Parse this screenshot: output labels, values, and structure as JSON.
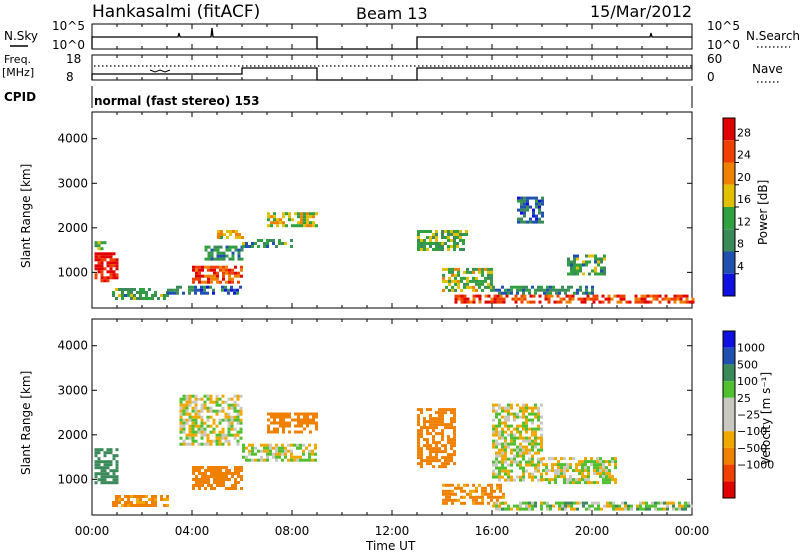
{
  "header": {
    "station": "Hankasalmi (fitACF)",
    "beam": "Beam 13",
    "date": "15/Mar/2012"
  },
  "top_panels": {
    "nsky_label": "N.Sky",
    "nsearch_label": "N.Search",
    "noise_ticks": [
      "10^5",
      "10^0"
    ],
    "freq_label": "Freq.",
    "freq_unit": "[MHz]",
    "freq_ticks": [
      "18",
      "8"
    ],
    "nave_label": "Nave",
    "nave_ticks": [
      "60",
      "0"
    ],
    "cpid_label": "CPID",
    "cpid_value": "normal (fast stereo) 153"
  },
  "colors": {
    "power_scale": [
      "#1010e0",
      "#2050b0",
      "#3a8a5a",
      "#30a040",
      "#e0c000",
      "#f08000",
      "#f04000",
      "#e00000"
    ],
    "velocity_scale": [
      "#e00000",
      "#f04000",
      "#f08000",
      "#f0a800",
      "#c8c8c0",
      "#c8c8c0",
      "#50c030",
      "#3a8a5a",
      "#2050b0",
      "#1010e0"
    ],
    "ground_scatter": "#c0c0b8"
  },
  "chart_data": [
    {
      "type": "heatmap",
      "name": "power",
      "ylabel": "Slant Range [km]",
      "ylim": [
        200,
        4600
      ],
      "yticks": [
        "4000",
        "3000",
        "2000",
        "1000"
      ],
      "colorbar_label": "Power [dB]",
      "colorbar_ticks": [
        "28",
        "24",
        "20",
        "16",
        "12",
        "8",
        "4"
      ],
      "colorbar_range": [
        0,
        32
      ],
      "xlim_hours": [
        0,
        24
      ],
      "data_gap_hours": [
        9,
        13
      ],
      "regions": [
        {
          "t0": 0.1,
          "t1": 1.0,
          "r0": 800,
          "r1": 1450,
          "value": 30
        },
        {
          "t0": 0.1,
          "t1": 0.5,
          "r0": 1450,
          "r1": 1700,
          "value": 14
        },
        {
          "t0": 0.8,
          "t1": 3.0,
          "r0": 400,
          "r1": 650,
          "value": 12
        },
        {
          "t0": 3.0,
          "t1": 6.0,
          "r0": 500,
          "r1": 700,
          "value": 8
        },
        {
          "t0": 4.0,
          "t1": 6.0,
          "r0": 800,
          "r1": 1150,
          "value": 26
        },
        {
          "t0": 4.5,
          "t1": 6.0,
          "r0": 1300,
          "r1": 1600,
          "value": 10
        },
        {
          "t0": 5.0,
          "t1": 6.0,
          "r0": 1750,
          "r1": 1950,
          "value": 20
        },
        {
          "t0": 6.0,
          "t1": 8.0,
          "r0": 1550,
          "r1": 1750,
          "value": 12
        },
        {
          "t0": 7.0,
          "t1": 9.0,
          "r0": 2050,
          "r1": 2350,
          "value": 18
        },
        {
          "t0": 13.0,
          "t1": 15.0,
          "r0": 1500,
          "r1": 1950,
          "value": 14
        },
        {
          "t0": 14.0,
          "t1": 16.0,
          "r0": 600,
          "r1": 1100,
          "value": 16
        },
        {
          "t0": 14.5,
          "t1": 24.0,
          "r0": 300,
          "r1": 500,
          "value": 26
        },
        {
          "t0": 16.0,
          "t1": 20.0,
          "r0": 500,
          "r1": 700,
          "value": 10
        },
        {
          "t0": 17.0,
          "t1": 18.0,
          "r0": 2100,
          "r1": 2700,
          "value": 8
        },
        {
          "t0": 19.0,
          "t1": 20.5,
          "r0": 950,
          "r1": 1400,
          "value": 12
        }
      ]
    },
    {
      "type": "heatmap",
      "name": "velocity",
      "ylabel": "Slant Range [km]",
      "ylim": [
        200,
        4600
      ],
      "yticks": [
        "4000",
        "3000",
        "2000",
        "1000"
      ],
      "colorbar_label": "Velocity [m s⁻¹]",
      "colorbar_ticks": [
        "1000",
        "500",
        "100",
        "25",
        "−25",
        "−100",
        "−500",
        "−1000"
      ],
      "xlim_hours": [
        0,
        24
      ],
      "data_gap_hours": [
        9,
        13
      ],
      "regions": [
        {
          "t0": 0.1,
          "t1": 1.0,
          "r0": 900,
          "r1": 1700,
          "value": 300
        },
        {
          "t0": 0.8,
          "t1": 3.0,
          "r0": 400,
          "r1": 650,
          "value": -150
        },
        {
          "t0": 4.0,
          "t1": 6.0,
          "r0": 800,
          "r1": 1300,
          "value": -200
        },
        {
          "t0": 3.5,
          "t1": 6.0,
          "r0": 1800,
          "r1": 2900,
          "value": 0
        },
        {
          "t0": 7.0,
          "t1": 9.0,
          "r0": 2050,
          "r1": 2500,
          "value": -400
        },
        {
          "t0": 6.0,
          "t1": 9.0,
          "r0": 1400,
          "r1": 1800,
          "value": 0
        },
        {
          "t0": 13.0,
          "t1": 14.5,
          "r0": 1300,
          "r1": 2600,
          "value": -300
        },
        {
          "t0": 14.0,
          "t1": 16.5,
          "r0": 450,
          "r1": 900,
          "value": -150
        },
        {
          "t0": 16.0,
          "t1": 24.0,
          "r0": 300,
          "r1": 500,
          "value": 40
        },
        {
          "t0": 16.0,
          "t1": 18.0,
          "r0": 1000,
          "r1": 2700,
          "value": 0
        },
        {
          "t0": 18.0,
          "t1": 21.0,
          "r0": 900,
          "r1": 1500,
          "value": 0
        }
      ]
    }
  ],
  "xaxis": {
    "label": "Time UT",
    "ticks": [
      "00:00",
      "04:00",
      "08:00",
      "12:00",
      "16:00",
      "20:00",
      "00:00"
    ]
  }
}
